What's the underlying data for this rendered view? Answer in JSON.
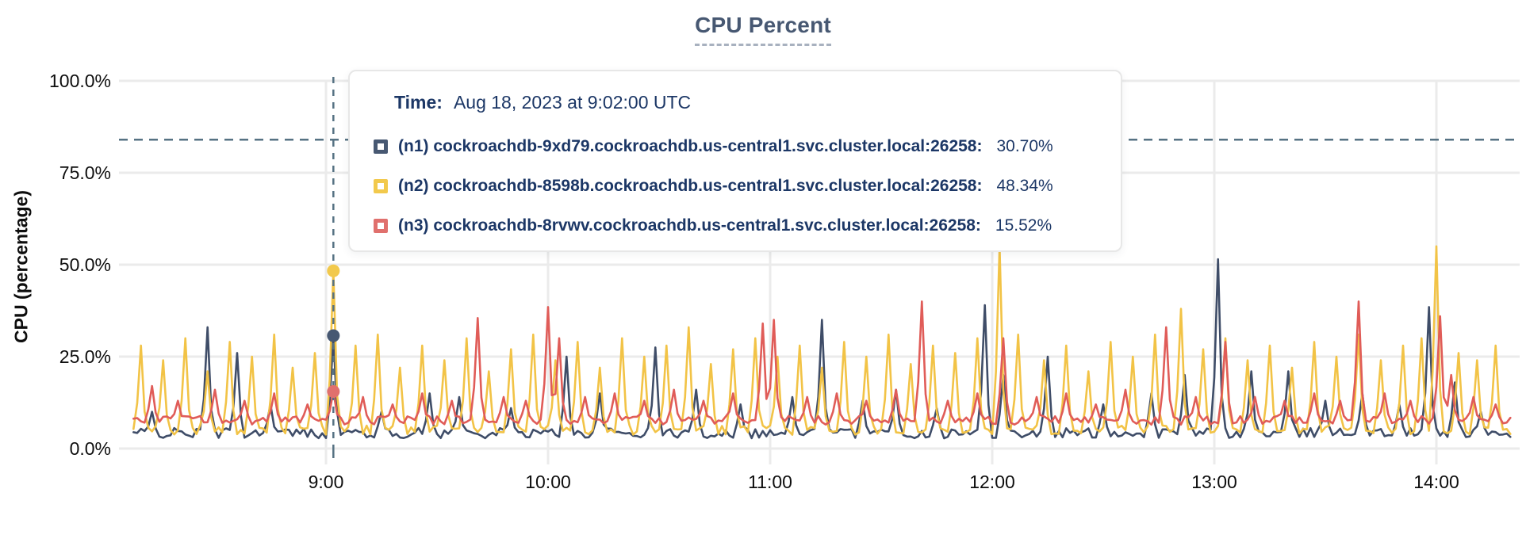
{
  "title": "CPU Percent",
  "tooltip": {
    "time_label": "Time:",
    "time_value": "Aug 18, 2023 at 9:02:00 UTC"
  },
  "colors": {
    "title": "#475872",
    "grid": "#ebebeb",
    "axis_text": "#0e0e0e",
    "crosshair": "#567283",
    "tooltip_text": "#1c3766"
  },
  "chart_data": {
    "type": "line",
    "title": "CPU Percent",
    "ylabel": "CPU (percentage)",
    "xlabel": "",
    "ylim": [
      0,
      100
    ],
    "grid": "on",
    "y_ticks": [
      {
        "value": 0,
        "label": "0.0%"
      },
      {
        "value": 25,
        "label": "25.0%"
      },
      {
        "value": 50,
        "label": "50.0%"
      },
      {
        "value": 75,
        "label": "75.0%"
      },
      {
        "value": 100,
        "label": "100.0%"
      }
    ],
    "x_ticks": [
      {
        "minute": 60,
        "label": "9:00"
      },
      {
        "minute": 120,
        "label": "10:00"
      },
      {
        "minute": 180,
        "label": "11:00"
      },
      {
        "minute": 240,
        "label": "12:00"
      },
      {
        "minute": 300,
        "label": "13:00"
      },
      {
        "minute": 360,
        "label": "14:00"
      }
    ],
    "x_domain_minutes_after_8am": [
      8,
      380
    ],
    "threshold_percent": 84,
    "cursor": {
      "minute": 62,
      "time": "Aug 18, 2023 at 9:02:00 UTC"
    },
    "series": [
      {
        "id": "n1",
        "label": "(n1) cockroachdb-9xd79.cockroachdb.us-central1.svc.cluster.local:26258:",
        "value_at_cursor": "30.70%",
        "cursor_value": 30.7,
        "color": "#3f4d68",
        "marker_color": "#475872",
        "baseline": 4.2,
        "noise": 1.4,
        "spikes": [
          [
            13,
            10
          ],
          [
            28,
            33
          ],
          [
            36,
            26
          ],
          [
            45,
            12
          ],
          [
            62,
            30.7
          ],
          [
            75,
            10
          ],
          [
            88,
            15
          ],
          [
            96,
            14
          ],
          [
            110,
            11
          ],
          [
            125,
            25
          ],
          [
            134,
            15
          ],
          [
            149,
            27.5
          ],
          [
            160,
            16
          ],
          [
            172,
            12
          ],
          [
            186,
            14
          ],
          [
            194,
            35
          ],
          [
            205,
            13
          ],
          [
            214,
            16
          ],
          [
            225,
            11
          ],
          [
            238,
            39
          ],
          [
            243,
            20
          ],
          [
            255,
            25
          ],
          [
            270,
            12
          ],
          [
            283,
            15
          ],
          [
            292,
            20
          ],
          [
            301,
            51.5
          ],
          [
            310,
            21
          ],
          [
            320,
            21
          ],
          [
            330,
            13
          ],
          [
            340,
            15
          ],
          [
            350,
            12
          ],
          [
            358,
            38.5
          ],
          [
            365,
            18
          ],
          [
            372,
            10
          ]
        ]
      },
      {
        "id": "n2",
        "label": "(n2) cockroachdb-8598b.cockroachdb.us-central1.svc.cluster.local:26258:",
        "value_at_cursor": "48.34%",
        "cursor_value": 48.34,
        "color": "#f2c346",
        "marker_color": "#f2c94c",
        "baseline": 5.0,
        "noise": 1.3,
        "spikes": [
          [
            10,
            28
          ],
          [
            16,
            24
          ],
          [
            22,
            30
          ],
          [
            28,
            21
          ],
          [
            34,
            29
          ],
          [
            40,
            25
          ],
          [
            46,
            31
          ],
          [
            51,
            22
          ],
          [
            57,
            26
          ],
          [
            62,
            48.34
          ],
          [
            68,
            28
          ],
          [
            74,
            31
          ],
          [
            80,
            22
          ],
          [
            86,
            28
          ],
          [
            92,
            24
          ],
          [
            98,
            30
          ],
          [
            104,
            21
          ],
          [
            110,
            27
          ],
          [
            116,
            31
          ],
          [
            122,
            24
          ],
          [
            128,
            29
          ],
          [
            134,
            22
          ],
          [
            140,
            30
          ],
          [
            146,
            25
          ],
          [
            152,
            28
          ],
          [
            158,
            33
          ],
          [
            164,
            23
          ],
          [
            170,
            27
          ],
          [
            176,
            30
          ],
          [
            182,
            25
          ],
          [
            188,
            28
          ],
          [
            194,
            22
          ],
          [
            200,
            29
          ],
          [
            206,
            25
          ],
          [
            212,
            31
          ],
          [
            218,
            23
          ],
          [
            224,
            28
          ],
          [
            230,
            26
          ],
          [
            236,
            30
          ],
          [
            242,
            55
          ],
          [
            247,
            31
          ],
          [
            254,
            24
          ],
          [
            260,
            28
          ],
          [
            266,
            21
          ],
          [
            272,
            29
          ],
          [
            278,
            25
          ],
          [
            284,
            31
          ],
          [
            291,
            38
          ],
          [
            297,
            27
          ],
          [
            303,
            30
          ],
          [
            309,
            24
          ],
          [
            315,
            28
          ],
          [
            321,
            22
          ],
          [
            327,
            29
          ],
          [
            333,
            25
          ],
          [
            339,
            31
          ],
          [
            345,
            24
          ],
          [
            351,
            28
          ],
          [
            356,
            30
          ],
          [
            360,
            55
          ],
          [
            366,
            26
          ],
          [
            371,
            24
          ],
          [
            376,
            28
          ]
        ]
      },
      {
        "id": "n3",
        "label": "(n3) cockroachdb-8rvwv.cockroachdb.us-central1.svc.cluster.local:26258:",
        "value_at_cursor": "15.52%",
        "cursor_value": 15.52,
        "color": "#e05c58",
        "marker_color": "#e0706d",
        "baseline": 7.7,
        "noise": 1.2,
        "spikes": [
          [
            13,
            17
          ],
          [
            20,
            13
          ],
          [
            30,
            16
          ],
          [
            38,
            13
          ],
          [
            46,
            15
          ],
          [
            55,
            12
          ],
          [
            62,
            15.52
          ],
          [
            70,
            14
          ],
          [
            78,
            12
          ],
          [
            86,
            15
          ],
          [
            94,
            13
          ],
          [
            101,
            35.5
          ],
          [
            108,
            14
          ],
          [
            114,
            13
          ],
          [
            120,
            38.5
          ],
          [
            123,
            30
          ],
          [
            130,
            14
          ],
          [
            138,
            15
          ],
          [
            146,
            13
          ],
          [
            154,
            16
          ],
          [
            162,
            13
          ],
          [
            170,
            15
          ],
          [
            178,
            34
          ],
          [
            181,
            35
          ],
          [
            190,
            14
          ],
          [
            198,
            15
          ],
          [
            206,
            13
          ],
          [
            214,
            16
          ],
          [
            221,
            40
          ],
          [
            228,
            13
          ],
          [
            236,
            15
          ],
          [
            243,
            30
          ],
          [
            252,
            14
          ],
          [
            260,
            15
          ],
          [
            268,
            12
          ],
          [
            276,
            16
          ],
          [
            287,
            33
          ],
          [
            295,
            14
          ],
          [
            303,
            29
          ],
          [
            311,
            14
          ],
          [
            319,
            13
          ],
          [
            327,
            15
          ],
          [
            334,
            13
          ],
          [
            339,
            40
          ],
          [
            346,
            15
          ],
          [
            353,
            13
          ],
          [
            361,
            36
          ],
          [
            364,
            20
          ],
          [
            370,
            14
          ],
          [
            376,
            12
          ]
        ]
      }
    ]
  }
}
